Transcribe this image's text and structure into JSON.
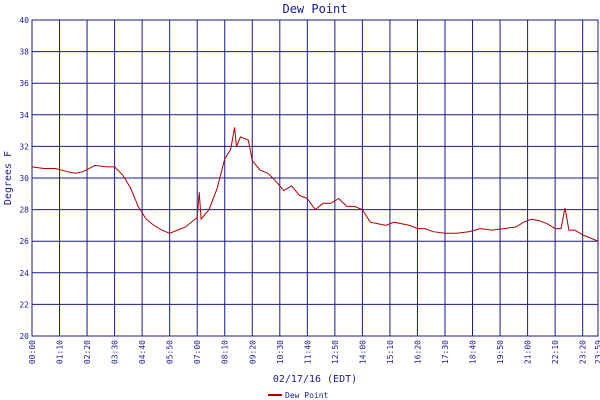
{
  "chart_data": {
    "type": "line",
    "title": "Dew Point",
    "xlabel": "02/17/16 (EDT)",
    "ylabel": "Degrees F",
    "ylim": [
      20,
      40
    ],
    "yticks": [
      20,
      22,
      24,
      26,
      28,
      30,
      32,
      34,
      36,
      38,
      40
    ],
    "xticks": [
      "00:00",
      "01:10",
      "02:20",
      "03:30",
      "04:40",
      "05:50",
      "07:00",
      "08:10",
      "09:20",
      "10:30",
      "11:40",
      "12:50",
      "14:00",
      "15:10",
      "16:20",
      "17:30",
      "18:40",
      "19:50",
      "21:00",
      "22:10",
      "23:20",
      "23:59"
    ],
    "grid": true,
    "legend_position": "bottom-center",
    "colors": {
      "series": "#b00000",
      "grid": "#1a1a8c",
      "text": "#1a1a8c"
    },
    "series": [
      {
        "name": "Dew Point",
        "x": [
          "00:00",
          "00:30",
          "01:00",
          "01:30",
          "01:50",
          "02:10",
          "02:40",
          "03:10",
          "03:30",
          "03:50",
          "04:10",
          "04:30",
          "04:50",
          "05:10",
          "05:30",
          "05:50",
          "06:10",
          "06:30",
          "07:00",
          "07:05",
          "07:10",
          "07:30",
          "07:50",
          "08:10",
          "08:25",
          "08:35",
          "08:40",
          "08:50",
          "09:10",
          "09:20",
          "09:40",
          "10:00",
          "10:20",
          "10:40",
          "11:00",
          "11:20",
          "11:40",
          "12:00",
          "12:20",
          "12:40",
          "13:00",
          "13:20",
          "13:40",
          "14:00",
          "14:20",
          "14:40",
          "15:00",
          "15:20",
          "15:40",
          "16:00",
          "16:20",
          "16:40",
          "17:00",
          "17:30",
          "18:00",
          "18:30",
          "19:00",
          "19:30",
          "20:00",
          "20:30",
          "20:50",
          "21:10",
          "21:30",
          "21:50",
          "22:10",
          "22:25",
          "22:35",
          "22:45",
          "23:00",
          "23:20",
          "23:40",
          "23:59"
        ],
        "values": [
          30.7,
          30.6,
          30.6,
          30.4,
          30.3,
          30.4,
          30.8,
          30.7,
          30.7,
          30.2,
          29.4,
          28.2,
          27.4,
          27.0,
          26.7,
          26.5,
          26.7,
          26.9,
          27.5,
          29.1,
          27.4,
          28.0,
          29.3,
          31.2,
          31.8,
          33.2,
          32.0,
          32.6,
          32.4,
          31.1,
          30.5,
          30.3,
          29.8,
          29.2,
          29.5,
          28.9,
          28.7,
          28.0,
          28.4,
          28.4,
          28.7,
          28.2,
          28.2,
          28.0,
          27.2,
          27.1,
          27.0,
          27.2,
          27.1,
          27.0,
          26.8,
          26.8,
          26.6,
          26.5,
          26.5,
          26.6,
          26.8,
          26.7,
          26.8,
          26.9,
          27.2,
          27.4,
          27.3,
          27.1,
          26.8,
          26.8,
          28.1,
          26.7,
          26.7,
          26.4,
          26.2,
          26.0
        ]
      }
    ]
  }
}
